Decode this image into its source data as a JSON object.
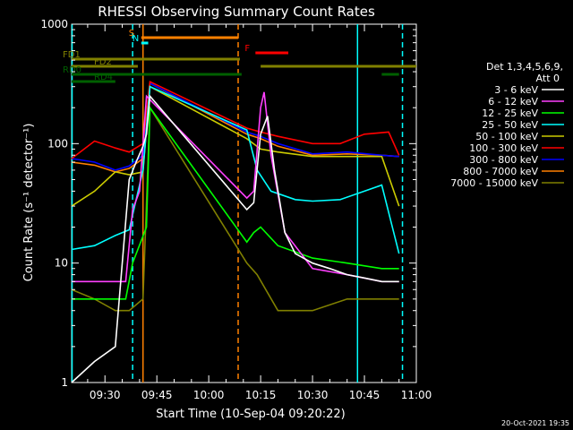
{
  "chart_data": {
    "type": "line",
    "title": "RHESSI Observing Summary Count Rates",
    "xlabel": "Start Time (10-Sep-04 09:20:22)",
    "ylabel": "Count Rate (s⁻¹ detector⁻¹)",
    "footer": "20-Oct-2021 19:35",
    "y_scale": "log",
    "ylim": [
      1,
      1000
    ],
    "xlim": [
      "09:20:22",
      "11:00:00"
    ],
    "x_ticks": [
      "09:30",
      "09:45",
      "10:00",
      "10:15",
      "10:30",
      "10:45",
      "11:00"
    ],
    "y_ticks": [
      "1",
      "10",
      "100",
      "1000"
    ],
    "legend": {
      "placement": "right",
      "header": [
        "Det 1,3,4,5,6,9,",
        "Att 0"
      ]
    },
    "series": [
      {
        "name": "3 - 6 keV",
        "color": "#ffffff",
        "points": [
          [
            "09:20:22",
            1
          ],
          [
            "09:27",
            1.5
          ],
          [
            "09:33",
            2
          ],
          [
            "09:37",
            50
          ],
          [
            "09:39",
            70
          ],
          [
            "09:41",
            95
          ],
          [
            "09:42",
            120
          ],
          [
            "09:43",
            250
          ],
          [
            "10:11",
            28
          ],
          [
            "10:13",
            32
          ],
          [
            "10:15",
            120
          ],
          [
            "10:17",
            170
          ],
          [
            "10:19",
            60
          ],
          [
            "10:22",
            18
          ],
          [
            "10:25",
            12
          ],
          [
            "10:30",
            10
          ],
          [
            "10:35",
            9
          ],
          [
            "10:40",
            8
          ],
          [
            "10:45",
            7.5
          ],
          [
            "10:50",
            7
          ],
          [
            "10:55",
            7
          ]
        ]
      },
      {
        "name": "6 - 12 keV",
        "color": "#ff40ff",
        "points": [
          [
            "09:20:22",
            7
          ],
          [
            "09:30",
            7
          ],
          [
            "09:36",
            7
          ],
          [
            "09:38",
            28
          ],
          [
            "09:40",
            40
          ],
          [
            "09:42",
            250
          ],
          [
            "10:11",
            35
          ],
          [
            "10:13",
            40
          ],
          [
            "10:15",
            200
          ],
          [
            "10:16",
            270
          ],
          [
            "10:18",
            80
          ],
          [
            "10:22",
            18
          ],
          [
            "10:30",
            9
          ],
          [
            "10:40",
            8
          ],
          [
            "10:50",
            7
          ],
          [
            "10:55",
            7
          ]
        ]
      },
      {
        "name": "12 - 25 keV",
        "color": "#00ff00",
        "points": [
          [
            "09:20:22",
            5
          ],
          [
            "09:36",
            5
          ],
          [
            "09:38",
            10
          ],
          [
            "09:42",
            20
          ],
          [
            "09:43",
            200
          ],
          [
            "10:11",
            15
          ],
          [
            "10:13",
            18
          ],
          [
            "10:15",
            20
          ],
          [
            "10:20",
            14
          ],
          [
            "10:30",
            11
          ],
          [
            "10:40",
            10
          ],
          [
            "10:50",
            9
          ],
          [
            "10:55",
            9
          ]
        ]
      },
      {
        "name": "25 - 50 keV",
        "color": "#00ffff",
        "points": [
          [
            "09:20:22",
            13
          ],
          [
            "09:27",
            14
          ],
          [
            "09:33",
            17
          ],
          [
            "09:37",
            19
          ],
          [
            "09:41",
            60
          ],
          [
            "09:43",
            300
          ],
          [
            "10:11",
            130
          ],
          [
            "10:14",
            60
          ],
          [
            "10:18",
            40
          ],
          [
            "10:25",
            34
          ],
          [
            "10:30",
            33
          ],
          [
            "10:38",
            34
          ],
          [
            "10:45",
            40
          ],
          [
            "10:50",
            45
          ],
          [
            "10:55",
            12
          ]
        ]
      },
      {
        "name": "50 - 100 keV",
        "color": "#cccc00",
        "points": [
          [
            "09:20:22",
            30
          ],
          [
            "09:27",
            40
          ],
          [
            "09:33",
            58
          ],
          [
            "09:37",
            55
          ],
          [
            "09:41",
            58
          ],
          [
            "09:43",
            300
          ],
          [
            "10:11",
            110
          ],
          [
            "10:15",
            90
          ],
          [
            "10:20",
            85
          ],
          [
            "10:30",
            78
          ],
          [
            "10:40",
            78
          ],
          [
            "10:50",
            78
          ],
          [
            "10:55",
            30
          ]
        ]
      },
      {
        "name": "100 - 300 keV",
        "color": "#ff0000",
        "points": [
          [
            "09:20:22",
            75
          ],
          [
            "09:27",
            105
          ],
          [
            "09:33",
            92
          ],
          [
            "09:37",
            85
          ],
          [
            "09:41",
            100
          ],
          [
            "09:43",
            330
          ],
          [
            "10:11",
            135
          ],
          [
            "10:15",
            125
          ],
          [
            "10:20",
            115
          ],
          [
            "10:30",
            100
          ],
          [
            "10:38",
            100
          ],
          [
            "10:45",
            120
          ],
          [
            "10:52",
            125
          ],
          [
            "10:55",
            80
          ]
        ]
      },
      {
        "name": "300 - 800 keV",
        "color": "#0000ff",
        "points": [
          [
            "09:20:22",
            75
          ],
          [
            "09:27",
            70
          ],
          [
            "09:33",
            60
          ],
          [
            "09:37",
            65
          ],
          [
            "09:41",
            80
          ],
          [
            "09:43",
            320
          ],
          [
            "10:11",
            125
          ],
          [
            "10:15",
            115
          ],
          [
            "10:20",
            100
          ],
          [
            "10:30",
            82
          ],
          [
            "10:40",
            85
          ],
          [
            "10:50",
            80
          ],
          [
            "10:55",
            78
          ]
        ]
      },
      {
        "name": "800 - 7000 keV",
        "color": "#ff8000",
        "points": [
          [
            "09:20:22",
            70
          ],
          [
            "09:27",
            66
          ],
          [
            "09:33",
            58
          ],
          [
            "09:37",
            62
          ],
          [
            "09:41",
            75
          ],
          [
            "09:43",
            320
          ],
          [
            "10:11",
            120
          ],
          [
            "10:15",
            110
          ],
          [
            "10:20",
            95
          ],
          [
            "10:30",
            80
          ],
          [
            "10:40",
            82
          ],
          [
            "10:50",
            80
          ],
          [
            "10:55",
            78
          ]
        ]
      },
      {
        "name": "7000 - 15000 keV",
        "color": "#808000",
        "points": [
          [
            "09:20:22",
            6
          ],
          [
            "09:27",
            5
          ],
          [
            "09:33",
            4
          ],
          [
            "09:37",
            4
          ],
          [
            "09:41",
            5
          ],
          [
            "09:43",
            200
          ],
          [
            "10:11",
            10
          ],
          [
            "10:14",
            8
          ],
          [
            "10:20",
            4
          ],
          [
            "10:30",
            4
          ],
          [
            "10:40",
            5
          ],
          [
            "10:50",
            5
          ],
          [
            "10:55",
            5
          ]
        ]
      }
    ],
    "flags": [
      {
        "label": "S",
        "color": "#ff8000",
        "start": "09:40:30",
        "end": "10:08:30"
      },
      {
        "label": "N",
        "color": "#00ffff",
        "start": "09:40:30",
        "end": "09:42:30"
      },
      {
        "label": "F",
        "color": "#ff0000",
        "start": "10:13:30",
        "end": "10:23:00"
      },
      {
        "label": "FD1",
        "color": "#808000",
        "start": "09:20:22",
        "end": "10:09:00"
      },
      {
        "label": "FD2",
        "color": "#808000",
        "start": "09:20:22",
        "end": "09:39:30",
        "resume": "10:15:00",
        "resume_end": "11:00:00"
      },
      {
        "label": "RD0",
        "color": "#006000",
        "start": "09:20:22",
        "end": "10:09:30",
        "resume": "10:50:00",
        "resume_end": "10:55:00"
      },
      {
        "label": "RD4",
        "color": "#006000",
        "start": "09:20:22",
        "end": "09:33:00"
      }
    ],
    "vertical_markers": [
      {
        "time": "09:20:30",
        "color": "#00ffff",
        "style": "solid"
      },
      {
        "time": "09:41:00",
        "color": "#ff8000",
        "style": "solid"
      },
      {
        "time": "09:38:00",
        "color": "#00ffff",
        "style": "dashed"
      },
      {
        "time": "10:08:30",
        "color": "#ff8000",
        "style": "dashed"
      },
      {
        "time": "10:43:00",
        "color": "#00ffff",
        "style": "solid"
      },
      {
        "time": "10:56:00",
        "color": "#00ffff",
        "style": "dashed"
      }
    ]
  }
}
